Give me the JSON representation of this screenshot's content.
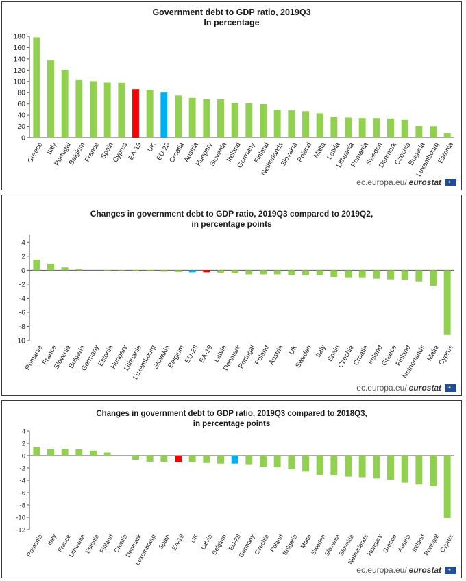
{
  "chart_data": [
    {
      "type": "bar",
      "title": [
        "Government debt to GDP ratio, 2019Q3",
        "In percentage"
      ],
      "categories": [
        "Greece",
        "Italy",
        "Portugal",
        "Belgium",
        "France",
        "Spain",
        "Cyprus",
        "EA-19",
        "UK",
        "EU-28",
        "Croatia",
        "Austria",
        "Hungary",
        "Slovenia",
        "Ireland",
        "Germany",
        "Finland",
        "Netherlands",
        "Slovakia",
        "Poland",
        "Malta",
        "Latvia",
        "Lithuania",
        "Romania",
        "Sweden",
        "Denmark",
        "Czechia",
        "Bulgaria",
        "Luxembourg",
        "Estonia"
      ],
      "values": [
        178.2,
        137.3,
        120.5,
        102.3,
        100.5,
        97.9,
        97.5,
        86.1,
        84.5,
        80.1,
        75.0,
        70.8,
        68.6,
        68.2,
        61.6,
        60.8,
        59.6,
        49.3,
        48.5,
        47.1,
        43.3,
        36.5,
        35.9,
        35.0,
        35.0,
        34.3,
        31.8,
        20.6,
        20.3,
        8.4
      ],
      "highlight": {
        "EA-19": "#ff0000",
        "EU-28": "#00b0f0"
      },
      "ylim": [
        0,
        180
      ],
      "yticks": [
        0,
        20,
        40,
        60,
        80,
        100,
        120,
        140,
        160,
        180
      ],
      "source": "ec.europa.eu/",
      "source_brand": "eurostat"
    },
    {
      "type": "bar",
      "title": [
        "Changes in government debt to GDP ratio, 2019Q3 compared to 2019Q2,",
        "in percentage points"
      ],
      "categories": [
        "Romania",
        "France",
        "Slovenia",
        "Bulgaria",
        "Germany",
        "Estonia",
        "Hungary",
        "Lithuania",
        "Luxembourg",
        "Slovakia",
        "Belgium",
        "EU-28",
        "EA-19",
        "Latvia",
        "Denmark",
        "Portugal",
        "Poland",
        "Austria",
        "UK",
        "Sweden",
        "Italy",
        "Spain",
        "Czechia",
        "Croatia",
        "Ireland",
        "Greece",
        "Finland",
        "Netherlands",
        "Malta",
        "Cyprus"
      ],
      "values": [
        1.5,
        0.9,
        0.4,
        0.2,
        0.0,
        -0.05,
        -0.1,
        -0.15,
        -0.15,
        -0.2,
        -0.25,
        -0.3,
        -0.3,
        -0.35,
        -0.45,
        -0.6,
        -0.6,
        -0.6,
        -0.7,
        -0.7,
        -0.7,
        -1.0,
        -1.1,
        -1.1,
        -1.2,
        -1.3,
        -1.4,
        -1.6,
        -2.2,
        -9.2
      ],
      "highlight": {
        "EA-19": "#ff0000",
        "EU-28": "#00b0f0"
      },
      "ylim": [
        -10,
        5
      ],
      "yticks": [
        -10,
        -8,
        -6,
        -4,
        -2,
        0,
        2,
        4
      ],
      "source": "ec.europa.eu/",
      "source_brand": "eurostat"
    },
    {
      "type": "bar",
      "title": [
        "Changes in government debt to GDP ratio, 2019Q3 compared to 2018Q3,",
        "in percentage points"
      ],
      "categories": [
        "Romania",
        "Italy",
        "France",
        "Lithuania",
        "Estonia",
        "Finland",
        "Croatia",
        "Denmark",
        "Luxembourg",
        "Spain",
        "EA-19",
        "UK",
        "Latvia",
        "Belgium",
        "EU-28",
        "Germany",
        "Czechia",
        "Poland",
        "Bulgaria",
        "Malta",
        "Sweden",
        "Slovenia",
        "Slovakia",
        "Netherlands",
        "Hungary",
        "Greece",
        "Austria",
        "Ireland",
        "Portugal",
        "Cyprus"
      ],
      "values": [
        1.4,
        1.1,
        1.1,
        1.0,
        0.8,
        0.5,
        0.0,
        -0.7,
        -1.0,
        -1.0,
        -1.1,
        -1.1,
        -1.2,
        -1.3,
        -1.3,
        -1.4,
        -1.8,
        -1.9,
        -2.2,
        -2.6,
        -3.1,
        -3.2,
        -3.4,
        -3.5,
        -3.7,
        -3.9,
        -4.4,
        -4.7,
        -5.0,
        -10.1
      ],
      "highlight": {
        "EA-19": "#ff0000",
        "EU-28": "#00b0f0"
      },
      "ylim": [
        -12,
        4
      ],
      "yticks": [
        -12,
        -10,
        -8,
        -6,
        -4,
        -2,
        0,
        2,
        4
      ],
      "source": "ec.europa.eu/",
      "source_brand": "eurostat"
    }
  ]
}
